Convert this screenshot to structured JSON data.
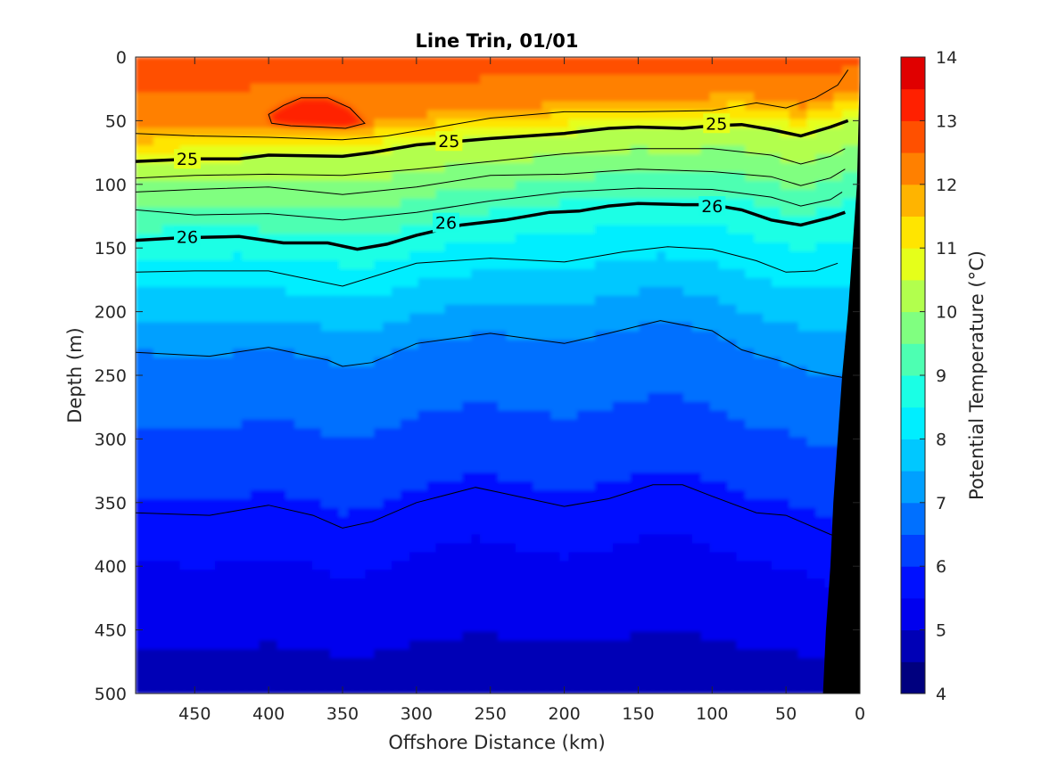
{
  "chart_data": {
    "type": "contourf",
    "title": "Line Trin, 01/01",
    "xlabel": "Offshore Distance (km)",
    "ylabel": "Depth (m)",
    "colorbar_label": "Potential Temperature (°C)",
    "xlim": [
      490,
      0
    ],
    "x_reversed": true,
    "ylim": [
      0,
      500
    ],
    "y_reversed": true,
    "x_ticks": [
      450,
      400,
      350,
      300,
      250,
      200,
      150,
      100,
      50,
      0
    ],
    "y_ticks": [
      0,
      50,
      100,
      150,
      200,
      250,
      300,
      350,
      400,
      450,
      500
    ],
    "colorbar_ticks": [
      4,
      5,
      6,
      7,
      8,
      9,
      10,
      11,
      12,
      13,
      14
    ],
    "color_levels": [
      4,
      4.5,
      5,
      5.5,
      6,
      6.5,
      7,
      7.5,
      8,
      8.5,
      9,
      9.5,
      10,
      10.5,
      11,
      11.5,
      12,
      12.5,
      13,
      13.5,
      14
    ],
    "colors": [
      "#00007f",
      "#0000b6",
      "#0000ee",
      "#0010ff",
      "#0040ff",
      "#0070ff",
      "#00a0ff",
      "#00c8ff",
      "#00eeff",
      "#1affe5",
      "#4dffb2",
      "#80ff80",
      "#b2ff4d",
      "#e5ff1a",
      "#ffe500",
      "#ffb400",
      "#ff8000",
      "#ff5000",
      "#ff2000",
      "#e00000",
      "#b00000"
    ],
    "temperature_isolines": [
      {
        "x": [
          490,
          440,
          400,
          360,
          350,
          330,
          300,
          250,
          200,
          170,
          135,
          100,
          80,
          50,
          40,
          20,
          10
        ],
        "y": [
          232,
          235,
          228,
          238,
          243,
          240,
          225,
          217,
          225,
          217,
          207,
          215,
          230,
          240,
          245,
          250,
          252
        ]
      },
      {
        "x": [
          490,
          440,
          420,
          400,
          370,
          350,
          330,
          300,
          260,
          240,
          200,
          170,
          140,
          120,
          100,
          70,
          50,
          40,
          20,
          15
        ],
        "y": [
          358,
          360,
          356,
          352,
          360,
          370,
          365,
          350,
          338,
          343,
          353,
          347,
          336,
          336,
          345,
          358,
          360,
          365,
          375,
          377
        ]
      }
    ],
    "sigma_contours": [
      {
        "level": 25,
        "labeled": true,
        "x": [
          490,
          450,
          420,
          400,
          350,
          330,
          300,
          250,
          200,
          170,
          150,
          120,
          100,
          80,
          60,
          40,
          20,
          8
        ],
        "y": [
          82,
          80,
          80,
          77,
          78,
          75,
          69,
          64,
          60,
          56,
          55,
          56,
          54,
          53,
          57,
          62,
          55,
          50
        ]
      },
      {
        "level": 26,
        "labeled": true,
        "x": [
          490,
          460,
          420,
          390,
          360,
          340,
          320,
          300,
          270,
          240,
          210,
          190,
          170,
          150,
          120,
          100,
          80,
          60,
          40,
          20,
          10
        ],
        "y": [
          144,
          142,
          141,
          146,
          146,
          151,
          147,
          140,
          132,
          128,
          122,
          121,
          117,
          115,
          116,
          116,
          120,
          128,
          132,
          126,
          122
        ]
      }
    ],
    "thin_sigma_contours": [
      {
        "x": [
          490,
          450,
          400,
          350,
          320,
          290,
          250,
          200,
          150,
          100,
          70,
          50,
          30,
          15,
          8
        ],
        "y": [
          60,
          62,
          63,
          65,
          62,
          56,
          48,
          43,
          43,
          42,
          36,
          40,
          32,
          22,
          10
        ]
      },
      {
        "x": [
          490,
          450,
          400,
          350,
          300,
          250,
          200,
          150,
          100,
          60,
          40,
          20,
          10
        ],
        "y": [
          95,
          93,
          92,
          93,
          88,
          82,
          76,
          72,
          72,
          77,
          84,
          78,
          72
        ]
      },
      {
        "x": [
          490,
          450,
          400,
          350,
          300,
          250,
          200,
          150,
          100,
          60,
          40,
          20,
          10
        ],
        "y": [
          106,
          104,
          102,
          108,
          102,
          93,
          92,
          88,
          90,
          94,
          101,
          95,
          88
        ]
      },
      {
        "x": [
          490,
          450,
          400,
          350,
          300,
          250,
          200,
          150,
          100,
          60,
          40,
          20,
          12
        ],
        "y": [
          120,
          124,
          123,
          128,
          122,
          113,
          106,
          103,
          104,
          110,
          117,
          112,
          106
        ]
      },
      {
        "x": [
          490,
          450,
          400,
          350,
          300,
          250,
          200,
          160,
          130,
          100,
          70,
          50,
          30,
          15
        ],
        "y": [
          169,
          168,
          168,
          180,
          162,
          158,
          161,
          153,
          149,
          151,
          160,
          169,
          168,
          162
        ]
      }
    ],
    "warm_core_13C": {
      "x": [
        400,
        390,
        378,
        360,
        345,
        335,
        348,
        365,
        385,
        398
      ],
      "y": [
        45,
        38,
        32,
        32,
        40,
        52,
        56,
        55,
        54,
        52
      ]
    },
    "sigma_contour_labels": [
      {
        "text": "25",
        "x": 455,
        "y": 80
      },
      {
        "text": "25",
        "x": 278,
        "y": 66
      },
      {
        "text": "25",
        "x": 97,
        "y": 52
      },
      {
        "text": "26",
        "x": 455,
        "y": 141
      },
      {
        "text": "26",
        "x": 280,
        "y": 130
      },
      {
        "text": "26",
        "x": 100,
        "y": 117
      }
    ],
    "bathymetry": {
      "x": [
        0,
        0.5,
        2,
        5,
        8,
        12,
        15,
        18,
        20,
        23,
        25
      ],
      "y": [
        0,
        30,
        100,
        150,
        200,
        250,
        300,
        350,
        400,
        450,
        500
      ],
      "color": "#000000"
    }
  }
}
